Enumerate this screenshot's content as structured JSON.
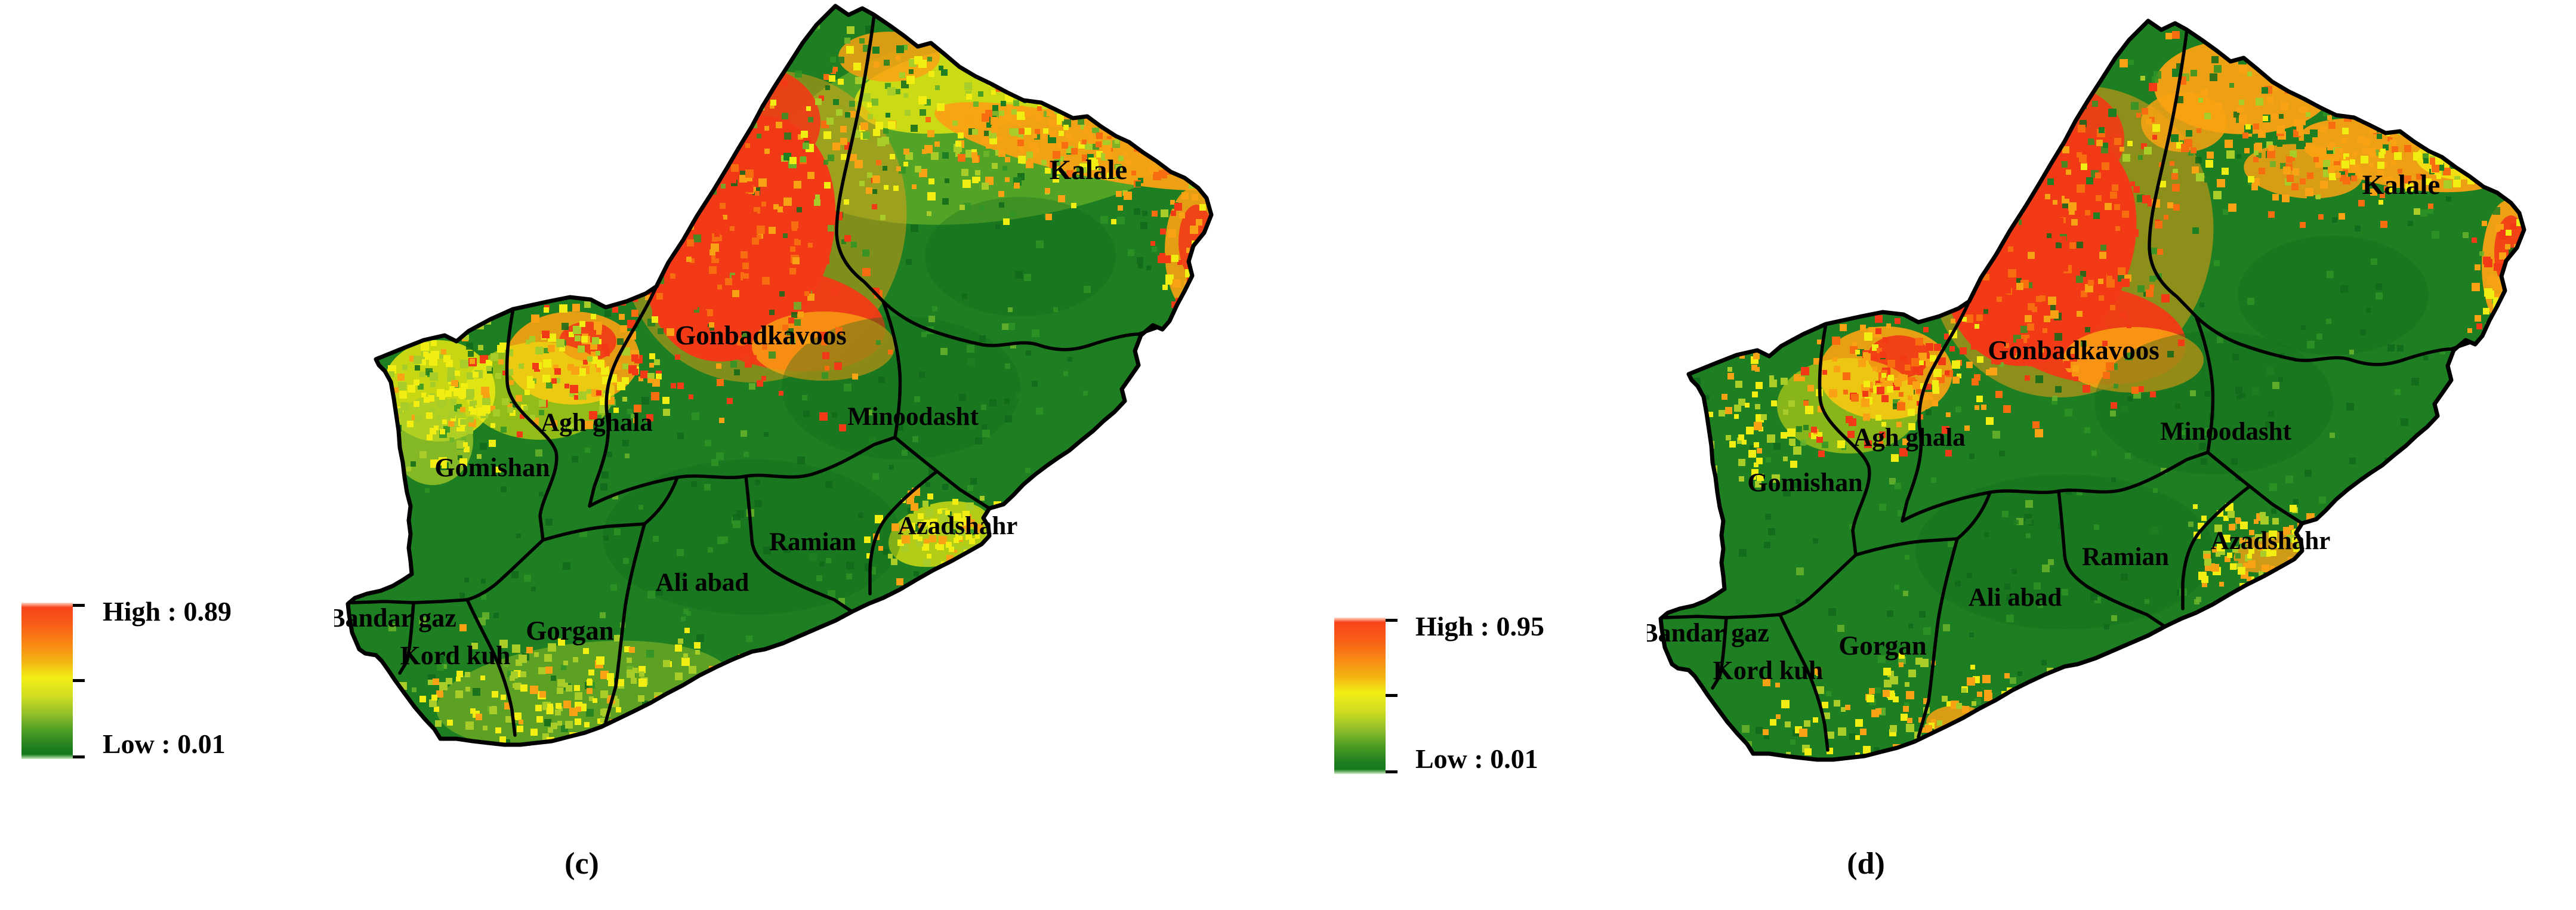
{
  "figure": {
    "panels": [
      {
        "id": "c",
        "caption": "(c)",
        "legend": {
          "high_label": "High : 0.89",
          "low_label": "Low : 0.01"
        }
      },
      {
        "id": "d",
        "caption": "(d)",
        "legend": {
          "high_label": "High : 0.95",
          "low_label": "Low : 0.01"
        }
      }
    ],
    "districts": [
      "Kalale",
      "Gonbadkavoos",
      "Minoodasht",
      "Agh ghala",
      "Gomishan",
      "Azadshahr",
      "Ramian",
      "Ali abad",
      "Gorgan",
      "Bandar gaz",
      "Kord kuh"
    ],
    "legend_values": {
      "panel_c_high": 0.89,
      "panel_c_low": 0.01,
      "panel_d_high": 0.95,
      "panel_d_low": 0.01
    },
    "colors": {
      "red": "#f23a16",
      "deep_orange": "#f96d11",
      "orange": "#f9a213",
      "yellow": "#f2ee11",
      "yellow_green": "#a8cc28",
      "light_green": "#6ab42a",
      "mid_green": "#2f9426",
      "base_green": "#1e7e22",
      "dark_green": "#11691a",
      "boundary": "#000000"
    }
  }
}
